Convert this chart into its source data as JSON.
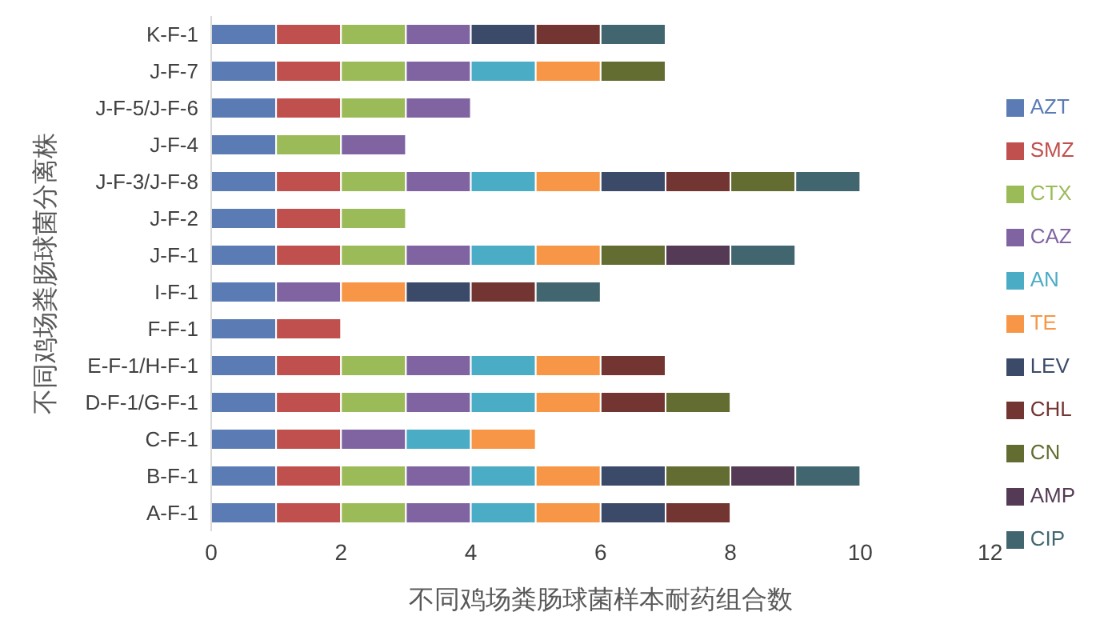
{
  "chart_data": {
    "type": "bar",
    "orientation": "horizontal",
    "stacked": true,
    "xlabel": "不同鸡场粪肠球菌样本耐药组合数",
    "ylabel": "不同鸡场粪肠球菌分离株",
    "categories": [
      "K-F-1",
      "J-F-7",
      "J-F-5/J-F-6",
      "J-F-4",
      "J-F-3/J-F-8",
      "J-F-2",
      "J-F-1",
      "I-F-1",
      "F-F-1",
      "E-F-1/H-F-1",
      "D-F-1/G-F-1",
      "C-F-1",
      "B-F-1",
      "A-F-1"
    ],
    "series": [
      {
        "name": "AZT",
        "color": "#5b7bb5",
        "values": [
          1,
          1,
          1,
          1,
          1,
          1,
          1,
          1,
          1,
          1,
          1,
          1,
          1,
          1
        ]
      },
      {
        "name": "SMZ",
        "color": "#c0504d",
        "values": [
          1,
          1,
          1,
          null,
          1,
          1,
          1,
          null,
          1,
          1,
          1,
          1,
          1,
          1
        ]
      },
      {
        "name": "CTX",
        "color": "#9bbb59",
        "values": [
          1,
          1,
          1,
          1,
          1,
          1,
          1,
          null,
          null,
          1,
          1,
          null,
          1,
          1
        ]
      },
      {
        "name": "CAZ",
        "color": "#8064a2",
        "values": [
          1,
          1,
          1,
          1,
          1,
          null,
          1,
          1,
          null,
          1,
          1,
          1,
          1,
          1
        ]
      },
      {
        "name": "AN",
        "color": "#4bacc6",
        "values": [
          null,
          1,
          null,
          null,
          1,
          null,
          1,
          null,
          null,
          1,
          1,
          1,
          1,
          1
        ]
      },
      {
        "name": "TE",
        "color": "#f79646",
        "values": [
          null,
          1,
          null,
          null,
          1,
          null,
          1,
          1,
          null,
          1,
          1,
          1,
          1,
          1
        ]
      },
      {
        "name": "LEV",
        "color": "#3c4a6a",
        "values": [
          1,
          null,
          null,
          null,
          1,
          null,
          null,
          1,
          null,
          null,
          null,
          null,
          1,
          1
        ]
      },
      {
        "name": "CHL",
        "color": "#733532",
        "values": [
          1,
          null,
          null,
          null,
          1,
          null,
          null,
          1,
          null,
          1,
          1,
          null,
          null,
          1
        ]
      },
      {
        "name": "CN",
        "color": "#636d32",
        "values": [
          null,
          1,
          null,
          null,
          1,
          null,
          1,
          null,
          null,
          null,
          1,
          null,
          1,
          null
        ]
      },
      {
        "name": "AMP",
        "color": "#553a55",
        "values": [
          null,
          null,
          null,
          null,
          null,
          null,
          1,
          null,
          null,
          null,
          null,
          null,
          1,
          null
        ]
      },
      {
        "name": "CIP",
        "color": "#426670",
        "values": [
          1,
          null,
          null,
          null,
          1,
          null,
          1,
          1,
          null,
          null,
          null,
          null,
          1,
          null
        ]
      }
    ],
    "xlim": [
      0,
      12
    ],
    "xticks": [
      0,
      2,
      4,
      6,
      8,
      10,
      12
    ],
    "grid": false,
    "legend": "right"
  }
}
